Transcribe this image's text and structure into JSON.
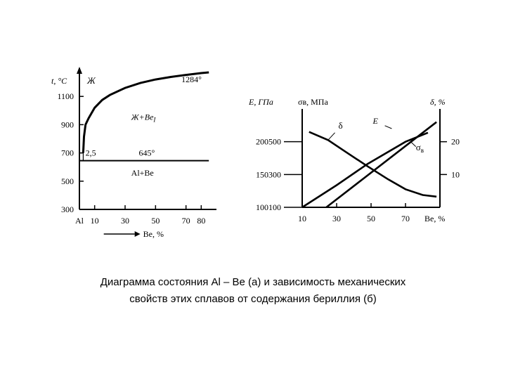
{
  "caption": {
    "line1": "Диаграмма состояния Al – Be (а) и зависимость механических",
    "line2": "свойств этих сплавов от содержания бериллия (б)"
  },
  "chart_data": [
    {
      "type": "line",
      "title": "",
      "ylabel": "t, °C",
      "xlabel": "Be, %",
      "x_tick_labels": [
        "Al",
        "10",
        "30",
        "50",
        "70",
        "80"
      ],
      "x_ticks": [
        0,
        10,
        30,
        50,
        70,
        80
      ],
      "y_ticks": [
        300,
        500,
        700,
        900,
        1100
      ],
      "xlim": [
        0,
        90
      ],
      "ylim": [
        300,
        1300
      ],
      "series": [
        {
          "x": [
            2.5,
            3,
            4,
            6,
            10,
            15,
            20,
            30,
            40,
            50,
            60,
            70,
            80,
            85
          ],
          "y": [
            700,
            815,
            900,
            945,
            1020,
            1075,
            1110,
            1160,
            1195,
            1220,
            1238,
            1252,
            1265,
            1270
          ]
        },
        {
          "x": [
            0,
            85
          ],
          "y": [
            645,
            645
          ]
        }
      ],
      "annotations": {
        "liquid": "Ж",
        "temp_top": "1284°",
        "liquid_be": "Ж+Be",
        "liquid_be_sub": "I",
        "eutectic_conc": "2,5",
        "eutectic_temp": "645°",
        "solid": "Al+Be"
      },
      "annotation_pos": {
        "liquid": [
          5,
          1190
        ],
        "temp_top": [
          67,
          1200
        ],
        "liquid_be": [
          34,
          935
        ],
        "eutectic_conc": [
          4,
          680
        ],
        "eutectic_temp": [
          39,
          680
        ],
        "solid": [
          34,
          540
        ]
      },
      "grid": false
    },
    {
      "type": "line",
      "title": "",
      "left_axis1_label": "E, ГПа",
      "left_axis2_label": "σв, МПа",
      "right_axis_label": "δ, %",
      "xlabel": "Be, %",
      "x_ticks": [
        10,
        30,
        50,
        70
      ],
      "x_tick_labels": [
        "10",
        "30",
        "50",
        "70"
      ],
      "xlim": [
        10,
        90
      ],
      "left_axis1_ticks": [
        100,
        150,
        200
      ],
      "left_axis2_ticks": [
        100,
        300,
        500
      ],
      "right_axis_ticks": [
        10,
        20
      ],
      "y_ticks_sigma": [
        100,
        300,
        500
      ],
      "ylim_sigma": [
        100,
        700
      ],
      "series": [
        {
          "name": "E",
          "x": [
            24,
            88
          ],
          "y": [
            100,
            620
          ]
        },
        {
          "name": "σв",
          "x": [
            10,
            30,
            48,
            70,
            83
          ],
          "y": [
            100,
            235,
            365,
            500,
            555
          ]
        },
        {
          "name": "δ",
          "x": [
            14,
            25,
            35,
            48,
            60,
            70,
            80,
            88
          ],
          "y": [
            560,
            510,
            440,
            350,
            270,
            210,
            175,
            165
          ]
        }
      ],
      "series_labels": {
        "E": "E",
        "sigma": "σ",
        "sigma_sub": "в",
        "delta": "δ"
      },
      "grid": false
    }
  ]
}
